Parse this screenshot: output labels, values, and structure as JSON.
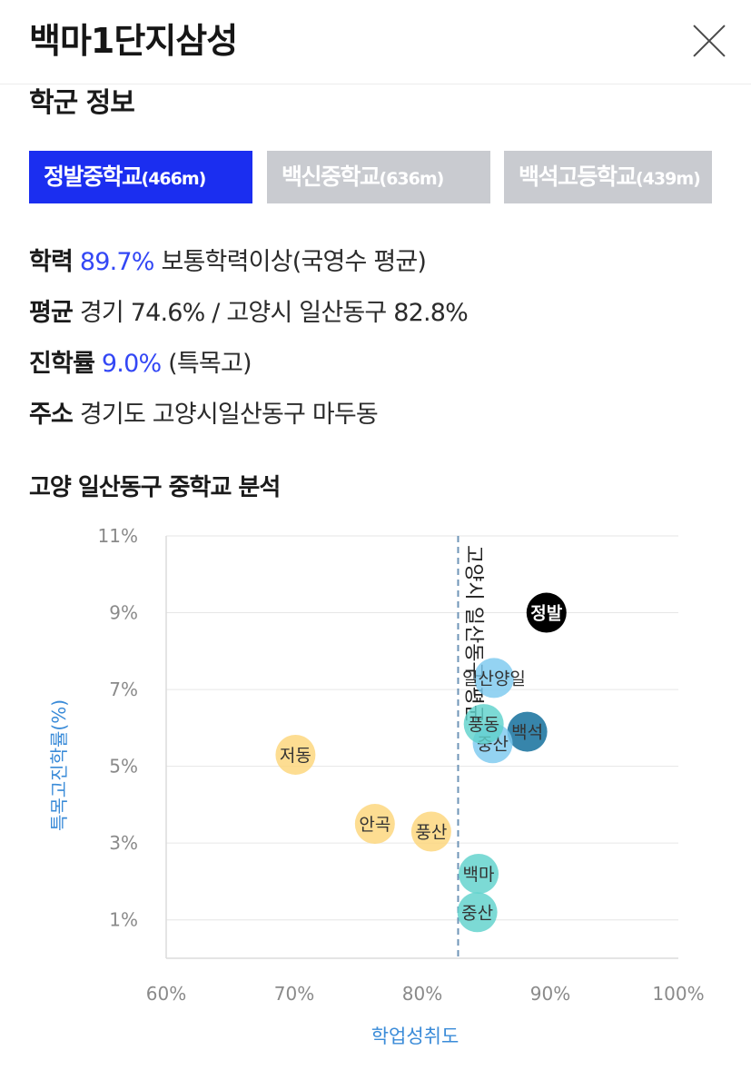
{
  "header": {
    "title": "백마1단지삼성"
  },
  "section_title": "학군 정보",
  "tabs": [
    {
      "name": "정발중학교",
      "dist": "(466m)",
      "active": true
    },
    {
      "name": "백신중학교",
      "dist": "(636m)",
      "active": false
    },
    {
      "name": "백석고등학교",
      "dist": "(439m)",
      "active": false
    }
  ],
  "info": {
    "achievement_label": "학력",
    "achievement_value": "89.7%",
    "achievement_desc": "보통학력이상(국영수 평균)",
    "average_label": "평균",
    "average_desc": "경기 74.6% / 고양시 일산동구 82.8%",
    "progress_label": "진학률",
    "progress_value": "9.0%",
    "progress_desc": "(특목고)",
    "address_label": "주소",
    "address_desc": "경기도 고양시일산동구 마두동"
  },
  "analysis_title": "고양 일산동구 중학교 분석",
  "chart_data": {
    "type": "scatter",
    "xlabel": "학업성취도",
    "ylabel": "특목고진학률(%)",
    "xlim": [
      60,
      100
    ],
    "ylim": [
      0,
      11
    ],
    "x_ticks": [
      "60%",
      "70%",
      "80%",
      "90%",
      "100%"
    ],
    "y_ticks": [
      "11%",
      "9%",
      "7%",
      "5%",
      "3%",
      "1%"
    ],
    "reference_line": {
      "x": 82.8,
      "label": "고양시 일산동구 평균"
    },
    "points": [
      {
        "label": "정발",
        "x": 89.7,
        "y": 9.0,
        "color": "#000000"
      },
      {
        "label": "일산양일",
        "x": 85.6,
        "y": 7.3,
        "color": "#7cc9ef"
      },
      {
        "label": "백석",
        "x": 88.2,
        "y": 5.9,
        "color": "#0b6a98"
      },
      {
        "label": "중산",
        "x": 85.5,
        "y": 5.6,
        "color": "#7cc9ef"
      },
      {
        "label": "풍동",
        "x": 84.8,
        "y": 6.1,
        "color": "#5fd2cc"
      },
      {
        "label": "저동",
        "x": 70.1,
        "y": 5.3,
        "color": "#fcd57a"
      },
      {
        "label": "안곡",
        "x": 76.3,
        "y": 3.5,
        "color": "#fcd57a"
      },
      {
        "label": "풍산",
        "x": 80.7,
        "y": 3.3,
        "color": "#fcd57a"
      },
      {
        "label": "백마",
        "x": 84.4,
        "y": 2.2,
        "color": "#5fd2cc"
      },
      {
        "label": "중산",
        "x": 84.3,
        "y": 1.2,
        "color": "#5fd2cc"
      }
    ]
  }
}
